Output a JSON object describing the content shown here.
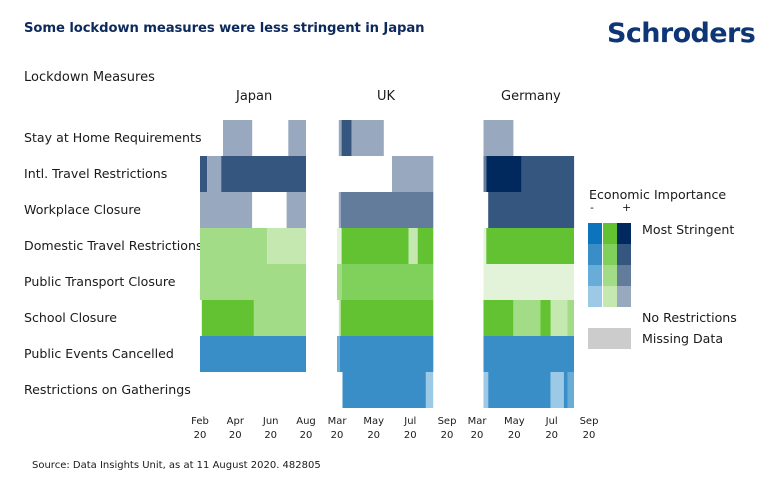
{
  "header": {
    "title": "Some lockdown measures were less stringent in Japan",
    "logo": "Schroders"
  },
  "source": "Source: Data Insights Unit, as at 11 August 2020. 482805",
  "chart_data": {
    "type": "heatmap",
    "title": "Some lockdown measures were less stringent in Japan",
    "ylabel": "Lockdown Measures",
    "rows": [
      "Stay at Home Requirements",
      "Intl. Travel Restrictions",
      "Workplace Closure",
      "Domestic Travel Restrictions",
      "Public Transport Closure",
      "School Closure",
      "Public Events Cancelled",
      "Restrictions on Gatherings"
    ],
    "economic_importance": {
      "Stay at Home Requirements": "high",
      "Intl. Travel Restrictions": "high",
      "Workplace Closure": "high",
      "Domestic Travel Restrictions": "medium",
      "Public Transport Closure": "medium",
      "School Closure": "medium",
      "Public Events Cancelled": "low",
      "Restrictions on Gatherings": "low"
    },
    "time_unit": "month (fractional, 2020; 2.0 = start of Feb)",
    "panels": [
      {
        "country": "Japan",
        "x_range": [
          2.0,
          8.0
        ],
        "ticks": [
          {
            "month": "Feb",
            "year": "20",
            "value": 2.0
          },
          {
            "month": "Apr",
            "year": "20",
            "value": 4.0
          },
          {
            "month": "Jun",
            "year": "20",
            "value": 6.0
          },
          {
            "month": "Aug",
            "year": "20",
            "value": 8.0
          }
        ],
        "segments": {
          "Stay at Home Requirements": [
            {
              "start": 3.3,
              "end": 4.95,
              "level": 1
            },
            {
              "start": 7.0,
              "end": 8.0,
              "level": 1
            }
          ],
          "Intl. Travel Restrictions": [
            {
              "start": 2.0,
              "end": 2.4,
              "level": 3
            },
            {
              "start": 2.4,
              "end": 3.2,
              "level": 1
            },
            {
              "start": 3.2,
              "end": 8.0,
              "level": 3
            }
          ],
          "Workplace Closure": [
            {
              "start": 2.0,
              "end": 4.95,
              "level": 1
            },
            {
              "start": 6.9,
              "end": 8.0,
              "level": 1
            }
          ],
          "Domestic Travel Restrictions": [
            {
              "start": 2.0,
              "end": 5.8,
              "level": 2
            },
            {
              "start": 5.8,
              "end": 8.0,
              "level": 1
            }
          ],
          "Public Transport Closure": [
            {
              "start": 2.0,
              "end": 8.0,
              "level": 2
            }
          ],
          "School Closure": [
            {
              "start": 2.1,
              "end": 5.05,
              "level": 4
            },
            {
              "start": 5.05,
              "end": 8.0,
              "level": 2
            }
          ],
          "Public Events Cancelled": [
            {
              "start": 2.0,
              "end": 8.0,
              "level": 3
            }
          ],
          "Restrictions on Gatherings": []
        }
      },
      {
        "country": "UK",
        "x_range": [
          3.0,
          9.0
        ],
        "ticks": [
          {
            "month": "Mar",
            "year": "20",
            "value": 3.0
          },
          {
            "month": "May",
            "year": "20",
            "value": 5.0
          },
          {
            "month": "Jul",
            "year": "20",
            "value": 7.0
          },
          {
            "month": "Sep",
            "year": "20",
            "value": 9.0
          }
        ],
        "segments": {
          "Stay at Home Requirements": [
            {
              "start": 3.1,
              "end": 3.25,
              "level": 1
            },
            {
              "start": 3.25,
              "end": 3.8,
              "level": 3
            },
            {
              "start": 3.8,
              "end": 5.55,
              "level": 1
            }
          ],
          "Intl. Travel Restrictions": [
            {
              "start": 6.0,
              "end": 8.25,
              "level": 1
            }
          ],
          "Workplace Closure": [
            {
              "start": 3.1,
              "end": 3.2,
              "level": 1
            },
            {
              "start": 3.2,
              "end": 8.25,
              "level": 2
            }
          ],
          "Domestic Travel Restrictions": [
            {
              "start": 3.0,
              "end": 3.25,
              "level": 0
            },
            {
              "start": 3.25,
              "end": 6.9,
              "level": 4
            },
            {
              "start": 6.9,
              "end": 7.4,
              "level": 1
            },
            {
              "start": 7.4,
              "end": 8.25,
              "level": 4
            }
          ],
          "Public Transport Closure": [
            {
              "start": 3.0,
              "end": 3.25,
              "level": 2
            },
            {
              "start": 3.25,
              "end": 8.25,
              "level": 3
            }
          ],
          "School Closure": [
            {
              "start": 3.1,
              "end": 3.2,
              "level": 1
            },
            {
              "start": 3.2,
              "end": 8.25,
              "level": 4
            }
          ],
          "Public Events Cancelled": [
            {
              "start": 3.0,
              "end": 3.15,
              "level": 2
            },
            {
              "start": 3.15,
              "end": 8.25,
              "level": 3
            }
          ],
          "Restrictions on Gatherings": [
            {
              "start": 3.3,
              "end": 7.85,
              "level": 3
            },
            {
              "start": 7.85,
              "end": 8.25,
              "level": 1
            }
          ]
        }
      },
      {
        "country": "Germany",
        "x_range": [
          3.0,
          9.0
        ],
        "ticks": [
          {
            "month": "Mar",
            "year": "20",
            "value": 3.0
          },
          {
            "month": "May",
            "year": "20",
            "value": 5.0
          },
          {
            "month": "Jul",
            "year": "20",
            "value": 7.0
          },
          {
            "month": "Sep",
            "year": "20",
            "value": 9.0
          }
        ],
        "segments": {
          "Stay at Home Requirements": [
            {
              "start": 3.35,
              "end": 4.95,
              "level": 1
            }
          ],
          "Intl. Travel Restrictions": [
            {
              "start": 3.35,
              "end": 3.5,
              "level": 2
            },
            {
              "start": 3.5,
              "end": 5.4,
              "level": 4
            },
            {
              "start": 5.4,
              "end": 8.2,
              "level": 3
            }
          ],
          "Workplace Closure": [
            {
              "start": 3.6,
              "end": 8.2,
              "level": 3
            }
          ],
          "Domestic Travel Restrictions": [
            {
              "start": 3.35,
              "end": 3.5,
              "level": 0
            },
            {
              "start": 3.5,
              "end": 8.2,
              "level": 4
            }
          ],
          "Public Transport Closure": [
            {
              "start": 3.35,
              "end": 8.2,
              "level": 0
            }
          ],
          "School Closure": [
            {
              "start": 3.35,
              "end": 4.95,
              "level": 4
            },
            {
              "start": 4.95,
              "end": 6.4,
              "level": 2
            },
            {
              "start": 6.4,
              "end": 6.95,
              "level": 4
            },
            {
              "start": 6.95,
              "end": 7.85,
              "level": 1
            },
            {
              "start": 7.85,
              "end": 8.2,
              "level": 2
            }
          ],
          "Public Events Cancelled": [
            {
              "start": 3.35,
              "end": 8.2,
              "level": 3
            }
          ],
          "Restrictions on Gatherings": [
            {
              "start": 3.35,
              "end": 3.6,
              "level": 1
            },
            {
              "start": 3.6,
              "end": 6.95,
              "level": 3
            },
            {
              "start": 6.95,
              "end": 7.65,
              "level": 1
            },
            {
              "start": 7.65,
              "end": 7.85,
              "level": 3
            },
            {
              "start": 7.85,
              "end": 8.2,
              "level": 2
            }
          ]
        }
      }
    ],
    "legend": {
      "title": "Economic Importance",
      "minus": "-",
      "plus": "+",
      "most_stringent": "Most Stringent",
      "no_restrictions": "No Restrictions",
      "missing_data": "Missing Data",
      "palette": {
        "low": [
          "#e0f1fb",
          "#9ccae6",
          "#68add8",
          "#3a8ec7",
          "#0b74bb"
        ],
        "medium": [
          "#e2f3da",
          "#c5e8b1",
          "#a3dc87",
          "#80d05c",
          "#62c232"
        ],
        "high": [
          "#e5e9f0",
          "#98a8bf",
          "#637c9c",
          "#35567e",
          "#02295e"
        ]
      },
      "missing_color": "#cccccc"
    }
  }
}
